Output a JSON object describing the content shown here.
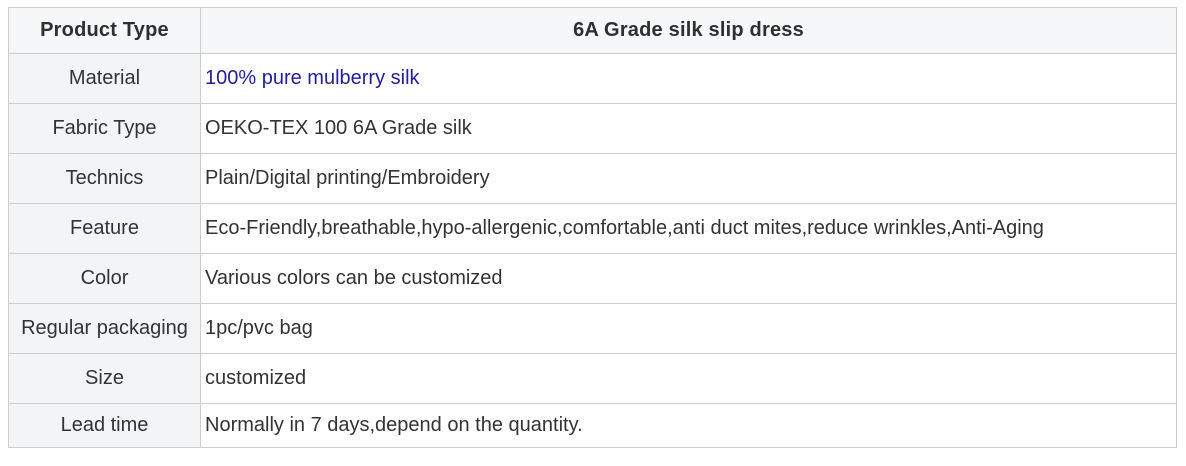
{
  "table": {
    "header": {
      "label": "Product Type",
      "title": "6A Grade silk slip dress"
    },
    "rows": [
      {
        "label": "Material",
        "value": "100% pure mulberry silk"
      },
      {
        "label": "Fabric Type",
        "value": "OEKO-TEX 100 6A Grade silk"
      },
      {
        "label": "Technics",
        "value": "Plain/Digital printing/Embroidery"
      },
      {
        "label": "Feature",
        "value": "Eco-Friendly,breathable,hypo-allergenic,comfortable,anti duct mites,reduce wrinkles,Anti-Aging"
      },
      {
        "label": "Color",
        "value": "Various colors can be customized"
      },
      {
        "label": "Regular packaging",
        "value": "1pc/pvc bag"
      },
      {
        "label": "Size",
        "value": "customized"
      },
      {
        "label": "Lead time",
        "value": "Normally in 7 days,depend on the quantity."
      }
    ]
  },
  "colors": {
    "border": "#cccccc",
    "header_bg": "#f6f7f8",
    "label_bg": "#f3f4f6",
    "value_bg": "#ffffff",
    "heading_text": "#2f2f2f",
    "body_text": "#333333",
    "link_text": "#221e9c"
  }
}
